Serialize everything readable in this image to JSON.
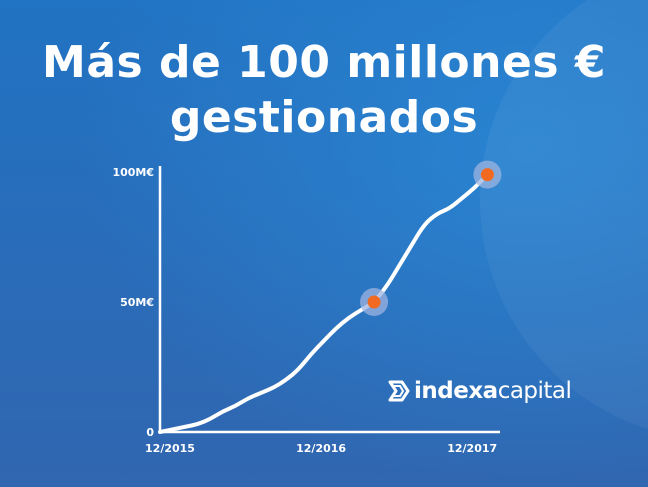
{
  "title": {
    "line1": "Más de 100 millones €",
    "line2": "gestionados"
  },
  "brand": {
    "part1": "indexa",
    "part2": "capital"
  },
  "colors": {
    "background": "#1f6fbe",
    "line": "#ffffff",
    "marker": "#f26a21",
    "marker_halo": "#9db4e0"
  },
  "chart_data": {
    "type": "line",
    "title": "Más de 100 millones €",
    "xlabel": "",
    "ylabel": "",
    "x_ticks": [
      "12/2015",
      "12/2016",
      "12/2017"
    ],
    "y_ticks": [
      "0",
      "50M€",
      "100M€"
    ],
    "ylim": [
      0,
      100
    ],
    "xlim": [
      "2015-12",
      "2018-03"
    ],
    "grid": false,
    "series": [
      {
        "x": [
          "2015-12",
          "2016-01",
          "2016-02",
          "2016-03",
          "2016-04",
          "2016-05",
          "2016-06",
          "2016-07",
          "2016-08",
          "2016-09",
          "2016-10",
          "2016-11",
          "2016-12",
          "2017-01",
          "2017-02",
          "2017-03",
          "2017-04",
          "2017-05",
          "2017-06",
          "2017-07",
          "2017-08",
          "2017-09",
          "2017-10",
          "2017-11",
          "2017-12",
          "2018-01",
          "2018-02"
        ],
        "values": [
          0,
          1,
          2,
          3,
          5,
          8,
          10,
          13,
          15,
          17,
          20,
          24,
          30,
          35,
          40,
          44,
          47,
          50,
          56,
          64,
          72,
          80,
          84,
          86,
          90,
          94,
          99
        ]
      }
    ],
    "highlights": [
      {
        "x": "2017-05",
        "value": 50
      },
      {
        "x": "2018-02",
        "value": 99
      }
    ]
  }
}
